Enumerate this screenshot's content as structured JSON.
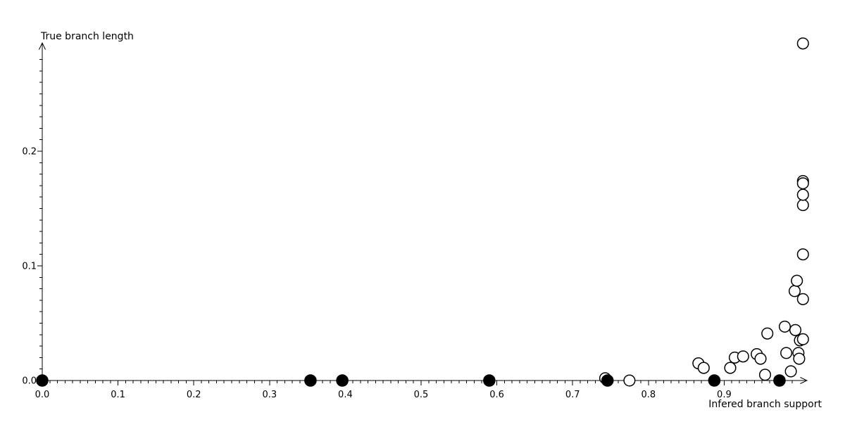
{
  "chart_data": {
    "type": "scatter",
    "title": "",
    "xlabel": "Infered branch support",
    "ylabel": "True branch length",
    "xlim": [
      0.0,
      1.005
    ],
    "ylim": [
      0.0,
      0.295
    ],
    "grid": false,
    "legend": "none",
    "background_color": "#ffffff",
    "axis_color": "#000000",
    "x_ticks": {
      "major": [
        0.0,
        0.1,
        0.2,
        0.3,
        0.4,
        0.5,
        0.6,
        0.7,
        0.8,
        0.9
      ],
      "labels": [
        "0.0",
        "0.1",
        "0.2",
        "0.3",
        "0.4",
        "0.5",
        "0.6",
        "0.7",
        "0.8",
        "0.9"
      ],
      "minor_step": 0.01,
      "minor_max": 0.99
    },
    "y_ticks": {
      "major": [
        0.0,
        0.1,
        0.2
      ],
      "labels": [
        "0.0",
        "0.1",
        "0.2"
      ],
      "minor_step": 0.01,
      "minor_max": 0.28
    },
    "series": [
      {
        "name": "open-circle-points",
        "marker": "open-circle",
        "stroke": "#000000",
        "fill": "#ffffff",
        "points": [
          [
            0.743,
            0.002
          ],
          [
            0.775,
            0.0
          ],
          [
            0.866,
            0.015
          ],
          [
            0.873,
            0.011
          ],
          [
            0.908,
            0.011
          ],
          [
            0.914,
            0.02
          ],
          [
            0.925,
            0.021
          ],
          [
            0.943,
            0.023
          ],
          [
            0.948,
            0.019
          ],
          [
            0.954,
            0.005
          ],
          [
            0.957,
            0.041
          ],
          [
            0.98,
            0.047
          ],
          [
            0.982,
            0.024
          ],
          [
            0.988,
            0.008
          ],
          [
            0.993,
            0.078
          ],
          [
            0.994,
            0.044
          ],
          [
            0.996,
            0.087
          ],
          [
            0.998,
            0.024
          ],
          [
            0.999,
            0.019
          ],
          [
            1.0,
            0.035
          ],
          [
            1.004,
            0.036
          ],
          [
            1.004,
            0.071
          ],
          [
            1.004,
            0.11
          ],
          [
            1.004,
            0.153
          ],
          [
            1.004,
            0.162
          ],
          [
            1.004,
            0.174
          ],
          [
            1.004,
            0.172
          ],
          [
            1.004,
            0.294
          ]
        ]
      },
      {
        "name": "filled-circle-points",
        "marker": "filled-circle",
        "stroke": "#000000",
        "fill": "#000000",
        "points": [
          [
            0.0,
            0.0
          ],
          [
            0.354,
            0.0
          ],
          [
            0.396,
            0.0
          ],
          [
            0.59,
            0.0
          ],
          [
            0.746,
            0.0
          ],
          [
            0.887,
            0.0
          ],
          [
            0.973,
            0.0
          ]
        ]
      }
    ]
  }
}
